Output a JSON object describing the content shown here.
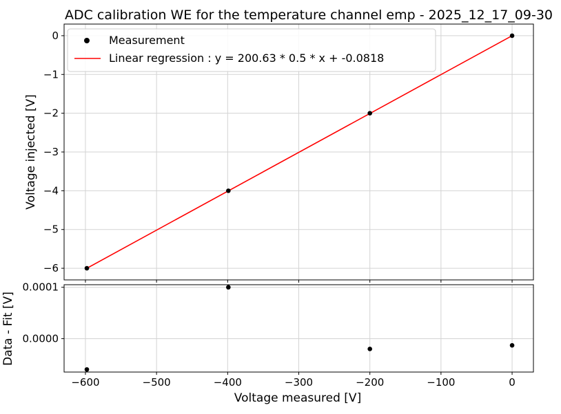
{
  "chart_data": [
    {
      "type": "scatter",
      "title": "ADC calibration WE for the temperature channel emp - 2025_12_17_09-30",
      "xlabel": "",
      "ylabel": "Voltage injected [V]",
      "xlim": [
        -630,
        30
      ],
      "ylim": [
        -6.3,
        0.3
      ],
      "grid": true,
      "legend_position": "top-left",
      "series": [
        {
          "name": "Measurement",
          "kind": "scatter",
          "color": "#000000",
          "x": [
            -598,
            -399,
            -200,
            0
          ],
          "y": [
            -6,
            -4,
            -2,
            0
          ]
        },
        {
          "name": "Linear regression : y =  200.63 * 0.5 * x + -0.0818",
          "kind": "line",
          "color": "#ff0000",
          "x": [
            -598,
            0
          ],
          "y": [
            -6,
            0
          ]
        }
      ],
      "y_ticks": [
        0,
        -1,
        -2,
        -3,
        -4,
        -5,
        -6
      ],
      "y_tick_labels": [
        "0",
        "−1",
        "−2",
        "−3",
        "−4",
        "−5",
        "−6"
      ],
      "x_ticks": [
        -600,
        -500,
        -400,
        -300,
        -200,
        -100,
        0
      ]
    },
    {
      "type": "scatter",
      "title": "",
      "xlabel": "Voltage measured [V]",
      "ylabel": "Data - Fit [V]",
      "xlim": [
        -630,
        30
      ],
      "ylim": [
        -6.5e-05,
        0.000105
      ],
      "grid": true,
      "series": [
        {
          "name": "",
          "kind": "scatter",
          "color": "#000000",
          "x": [
            -598,
            -399,
            -200,
            0
          ],
          "y": [
            -6e-05,
            0.0001,
            -2e-05,
            -1.3e-05
          ]
        }
      ],
      "y_ticks": [
        0.0001,
        0.0
      ],
      "y_tick_labels": [
        "0.0001",
        "0.0000"
      ],
      "x_ticks": [
        -600,
        -500,
        -400,
        -300,
        -200,
        -100,
        0
      ],
      "x_tick_labels": [
        "−600",
        "−500",
        "−400",
        "−300",
        "−200",
        "−100",
        "0"
      ]
    }
  ]
}
